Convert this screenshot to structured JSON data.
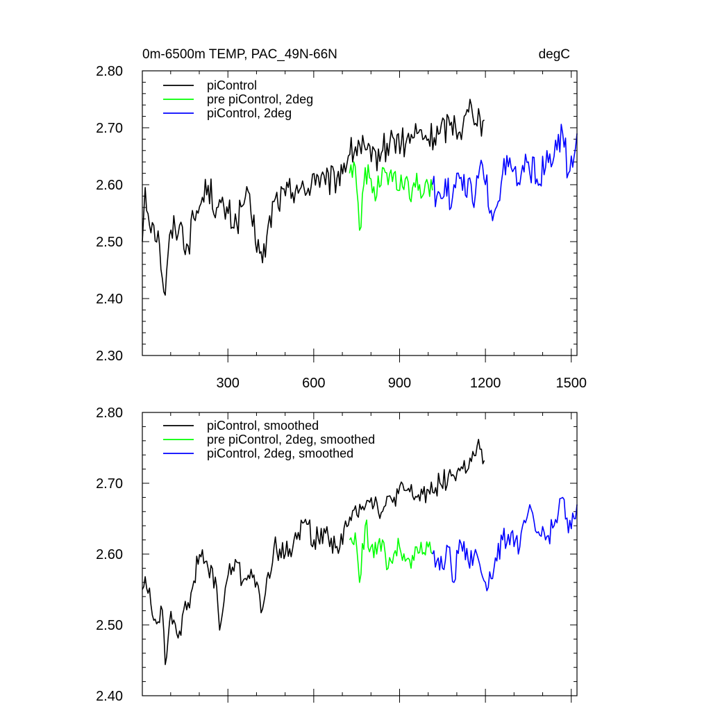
{
  "chart_data": [
    {
      "type": "line",
      "title_left": "0m-6500m TEMP, PAC_49N-66N",
      "title_right": "degC",
      "xlim": [
        1,
        1520
      ],
      "ylim": [
        2.3,
        2.8
      ],
      "x_ticks": [
        300,
        600,
        900,
        1200,
        1500
      ],
      "x_tick_labels": [
        "300",
        "600",
        "900",
        "1200",
        "1500"
      ],
      "y_ticks": [
        2.3,
        2.4,
        2.5,
        2.6,
        2.7,
        2.8
      ],
      "y_tick_labels": [
        "2.30",
        "2.40",
        "2.50",
        "2.60",
        "2.70",
        "2.80"
      ],
      "legend": [
        "piControl",
        "pre piControl, 2deg",
        "piControl, 2deg"
      ],
      "series": [
        {
          "name": "piControl",
          "color": "#000000",
          "points": [
            [
              1,
              2.5
            ],
            [
              10,
              2.6
            ],
            [
              20,
              2.55
            ],
            [
              40,
              2.53
            ],
            [
              60,
              2.5
            ],
            [
              80,
              2.4
            ],
            [
              100,
              2.52
            ],
            [
              130,
              2.53
            ],
            [
              160,
              2.49
            ],
            [
              180,
              2.54
            ],
            [
              200,
              2.56
            ],
            [
              230,
              2.6
            ],
            [
              260,
              2.56
            ],
            [
              300,
              2.55
            ],
            [
              330,
              2.53
            ],
            [
              360,
              2.58
            ],
            [
              380,
              2.55
            ],
            [
              420,
              2.46
            ],
            [
              460,
              2.57
            ],
            [
              500,
              2.58
            ],
            [
              540,
              2.6
            ],
            [
              570,
              2.58
            ],
            [
              600,
              2.62
            ],
            [
              640,
              2.6
            ],
            [
              680,
              2.61
            ],
            [
              720,
              2.65
            ],
            [
              760,
              2.67
            ],
            [
              800,
              2.64
            ],
            [
              840,
              2.66
            ],
            [
              880,
              2.68
            ],
            [
              920,
              2.67
            ],
            [
              960,
              2.69
            ],
            [
              1000,
              2.68
            ],
            [
              1040,
              2.69
            ],
            [
              1080,
              2.71
            ],
            [
              1120,
              2.7
            ],
            [
              1150,
              2.74
            ],
            [
              1180,
              2.72
            ],
            [
              1200,
              2.68
            ]
          ]
        },
        {
          "name": "pre piControl, 2deg",
          "color": "#00ff00",
          "points": [
            [
              725,
              2.62
            ],
            [
              740,
              2.64
            ],
            [
              760,
              2.52
            ],
            [
              780,
              2.63
            ],
            [
              800,
              2.61
            ],
            [
              820,
              2.58
            ],
            [
              840,
              2.63
            ],
            [
              860,
              2.6
            ],
            [
              880,
              2.62
            ],
            [
              900,
              2.59
            ],
            [
              920,
              2.61
            ],
            [
              940,
              2.57
            ],
            [
              960,
              2.62
            ],
            [
              980,
              2.58
            ],
            [
              1000,
              2.6
            ],
            [
              1015,
              2.59
            ]
          ]
        },
        {
          "name": "piControl, 2deg",
          "color": "#0000ff",
          "points": [
            [
              1015,
              2.6
            ],
            [
              1030,
              2.58
            ],
            [
              1060,
              2.61
            ],
            [
              1080,
              2.56
            ],
            [
              1100,
              2.62
            ],
            [
              1120,
              2.59
            ],
            [
              1140,
              2.61
            ],
            [
              1160,
              2.56
            ],
            [
              1180,
              2.63
            ],
            [
              1200,
              2.6
            ],
            [
              1230,
              2.55
            ],
            [
              1260,
              2.62
            ],
            [
              1290,
              2.63
            ],
            [
              1320,
              2.6
            ],
            [
              1350,
              2.64
            ],
            [
              1380,
              2.61
            ],
            [
              1410,
              2.63
            ],
            [
              1440,
              2.65
            ],
            [
              1470,
              2.69
            ],
            [
              1490,
              2.62
            ],
            [
              1510,
              2.65
            ],
            [
              1520,
              2.69
            ]
          ]
        }
      ]
    },
    {
      "type": "line",
      "xlim": [
        1,
        1520
      ],
      "ylim": [
        2.4,
        2.8
      ],
      "x_ticks": [
        300,
        600,
        900,
        1200,
        1500
      ],
      "y_ticks": [
        2.4,
        2.5,
        2.6,
        2.7,
        2.8
      ],
      "y_tick_labels": [
        "2.40",
        "2.50",
        "2.60",
        "2.70",
        "2.80"
      ],
      "legend": [
        "piControl, smoothed",
        "pre piControl, 2deg, smoothed",
        "piControl, 2deg, smoothed"
      ],
      "series": [
        {
          "name": "piControl, smoothed",
          "color": "#000000",
          "points": [
            [
              1,
              2.55
            ],
            [
              10,
              2.57
            ],
            [
              30,
              2.53
            ],
            [
              50,
              2.5
            ],
            [
              70,
              2.53
            ],
            [
              80,
              2.44
            ],
            [
              100,
              2.52
            ],
            [
              130,
              2.49
            ],
            [
              160,
              2.53
            ],
            [
              180,
              2.56
            ],
            [
              200,
              2.6
            ],
            [
              230,
              2.58
            ],
            [
              260,
              2.56
            ],
            [
              270,
              2.49
            ],
            [
              300,
              2.57
            ],
            [
              330,
              2.59
            ],
            [
              350,
              2.56
            ],
            [
              380,
              2.58
            ],
            [
              420,
              2.52
            ],
            [
              460,
              2.61
            ],
            [
              500,
              2.6
            ],
            [
              540,
              2.62
            ],
            [
              570,
              2.65
            ],
            [
              600,
              2.62
            ],
            [
              640,
              2.63
            ],
            [
              680,
              2.61
            ],
            [
              720,
              2.64
            ],
            [
              760,
              2.67
            ],
            [
              800,
              2.68
            ],
            [
              840,
              2.66
            ],
            [
              880,
              2.68
            ],
            [
              920,
              2.69
            ],
            [
              960,
              2.68
            ],
            [
              1000,
              2.69
            ],
            [
              1040,
              2.7
            ],
            [
              1080,
              2.71
            ],
            [
              1120,
              2.72
            ],
            [
              1150,
              2.73
            ],
            [
              1180,
              2.75
            ],
            [
              1200,
              2.71
            ]
          ]
        },
        {
          "name": "pre piControl, 2deg, smoothed",
          "color": "#00ff00",
          "points": [
            [
              725,
              2.62
            ],
            [
              745,
              2.63
            ],
            [
              760,
              2.56
            ],
            [
              780,
              2.64
            ],
            [
              800,
              2.61
            ],
            [
              820,
              2.6
            ],
            [
              840,
              2.62
            ],
            [
              860,
              2.58
            ],
            [
              880,
              2.6
            ],
            [
              900,
              2.61
            ],
            [
              920,
              2.59
            ],
            [
              940,
              2.58
            ],
            [
              960,
              2.61
            ],
            [
              980,
              2.6
            ],
            [
              1000,
              2.61
            ],
            [
              1015,
              2.6
            ]
          ]
        },
        {
          "name": "piControl, 2deg, smoothed",
          "color": "#0000ff",
          "points": [
            [
              1015,
              2.6
            ],
            [
              1030,
              2.59
            ],
            [
              1050,
              2.58
            ],
            [
              1070,
              2.61
            ],
            [
              1090,
              2.56
            ],
            [
              1110,
              2.62
            ],
            [
              1140,
              2.59
            ],
            [
              1170,
              2.6
            ],
            [
              1200,
              2.56
            ],
            [
              1230,
              2.58
            ],
            [
              1260,
              2.62
            ],
            [
              1290,
              2.63
            ],
            [
              1320,
              2.61
            ],
            [
              1350,
              2.66
            ],
            [
              1380,
              2.63
            ],
            [
              1410,
              2.62
            ],
            [
              1440,
              2.64
            ],
            [
              1470,
              2.68
            ],
            [
              1490,
              2.63
            ],
            [
              1510,
              2.65
            ],
            [
              1520,
              2.67
            ]
          ]
        }
      ]
    }
  ]
}
